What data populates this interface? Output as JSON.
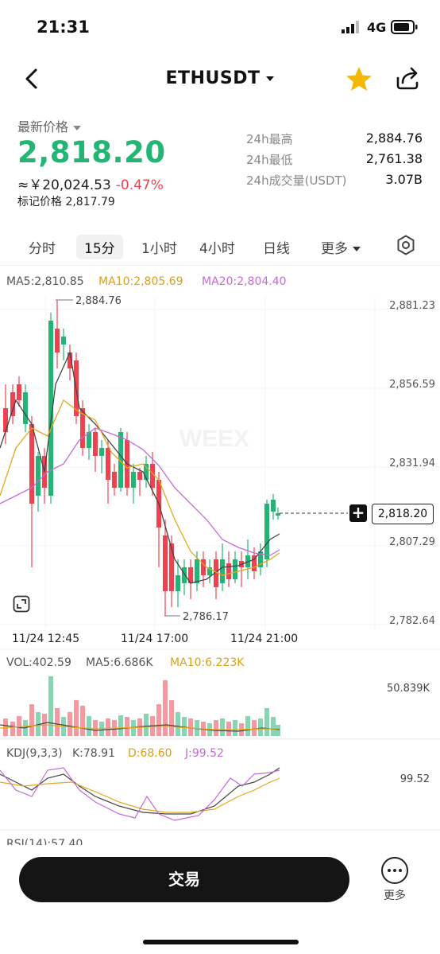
{
  "status_bar": {
    "time": "21:31",
    "network": "4G"
  },
  "header": {
    "pair": "ETHUSDT"
  },
  "price_block": {
    "last_price_label": "最新价格",
    "last_price": "2,818.20",
    "cny_value": "≈￥20,024.53",
    "change_pct": "-0.47%",
    "mark_price": "标记价格 2,817.79",
    "stats": [
      {
        "label": "24h最高",
        "value": "2,884.76"
      },
      {
        "label": "24h最低",
        "value": "2,761.38"
      },
      {
        "label": "24h成交量(USDT)",
        "value": "3.07B"
      }
    ]
  },
  "tabs": [
    {
      "label": "分时",
      "active": false
    },
    {
      "label": "15分",
      "active": true
    },
    {
      "label": "1小时",
      "active": false
    },
    {
      "label": "4小时",
      "active": false
    },
    {
      "label": "日线",
      "active": false
    },
    {
      "label": "更多",
      "active": false
    }
  ],
  "chart": {
    "ma5": "MA5:2,810.85",
    "ma10": "MA10:2,805.69",
    "ma20": "MA20:2,804.40",
    "high_marker": "2,884.76",
    "low_marker": "2,786.17",
    "current_price_tag": "2,818.20",
    "price_axis": [
      "2,881.23",
      "2,856.59",
      "2,831.94",
      "2,807.29",
      "2,782.64"
    ],
    "time_axis": [
      "11/24 12:45",
      "11/24 17:00",
      "11/24 21:00"
    ],
    "watermark": "WEEX",
    "colors": {
      "up": "#22b573",
      "down": "#f0424e",
      "ma5": "#444444",
      "ma10": "#e3a81c",
      "ma20": "#c46ad9"
    }
  },
  "volume": {
    "vol": "VOL:402.59",
    "ma5": "MA5:6.686K",
    "ma10": "MA10:6.223K",
    "axis_max": "50.839K"
  },
  "kdj": {
    "label": "KDJ(9,3,3)",
    "k": "K:78.91",
    "d": "D:68.60",
    "j": "J:99.52",
    "axis_max": "99.52"
  },
  "rsi": {
    "label": "RSI(14):57.40"
  },
  "bottom": {
    "trade": "交易",
    "more": "更多"
  }
}
